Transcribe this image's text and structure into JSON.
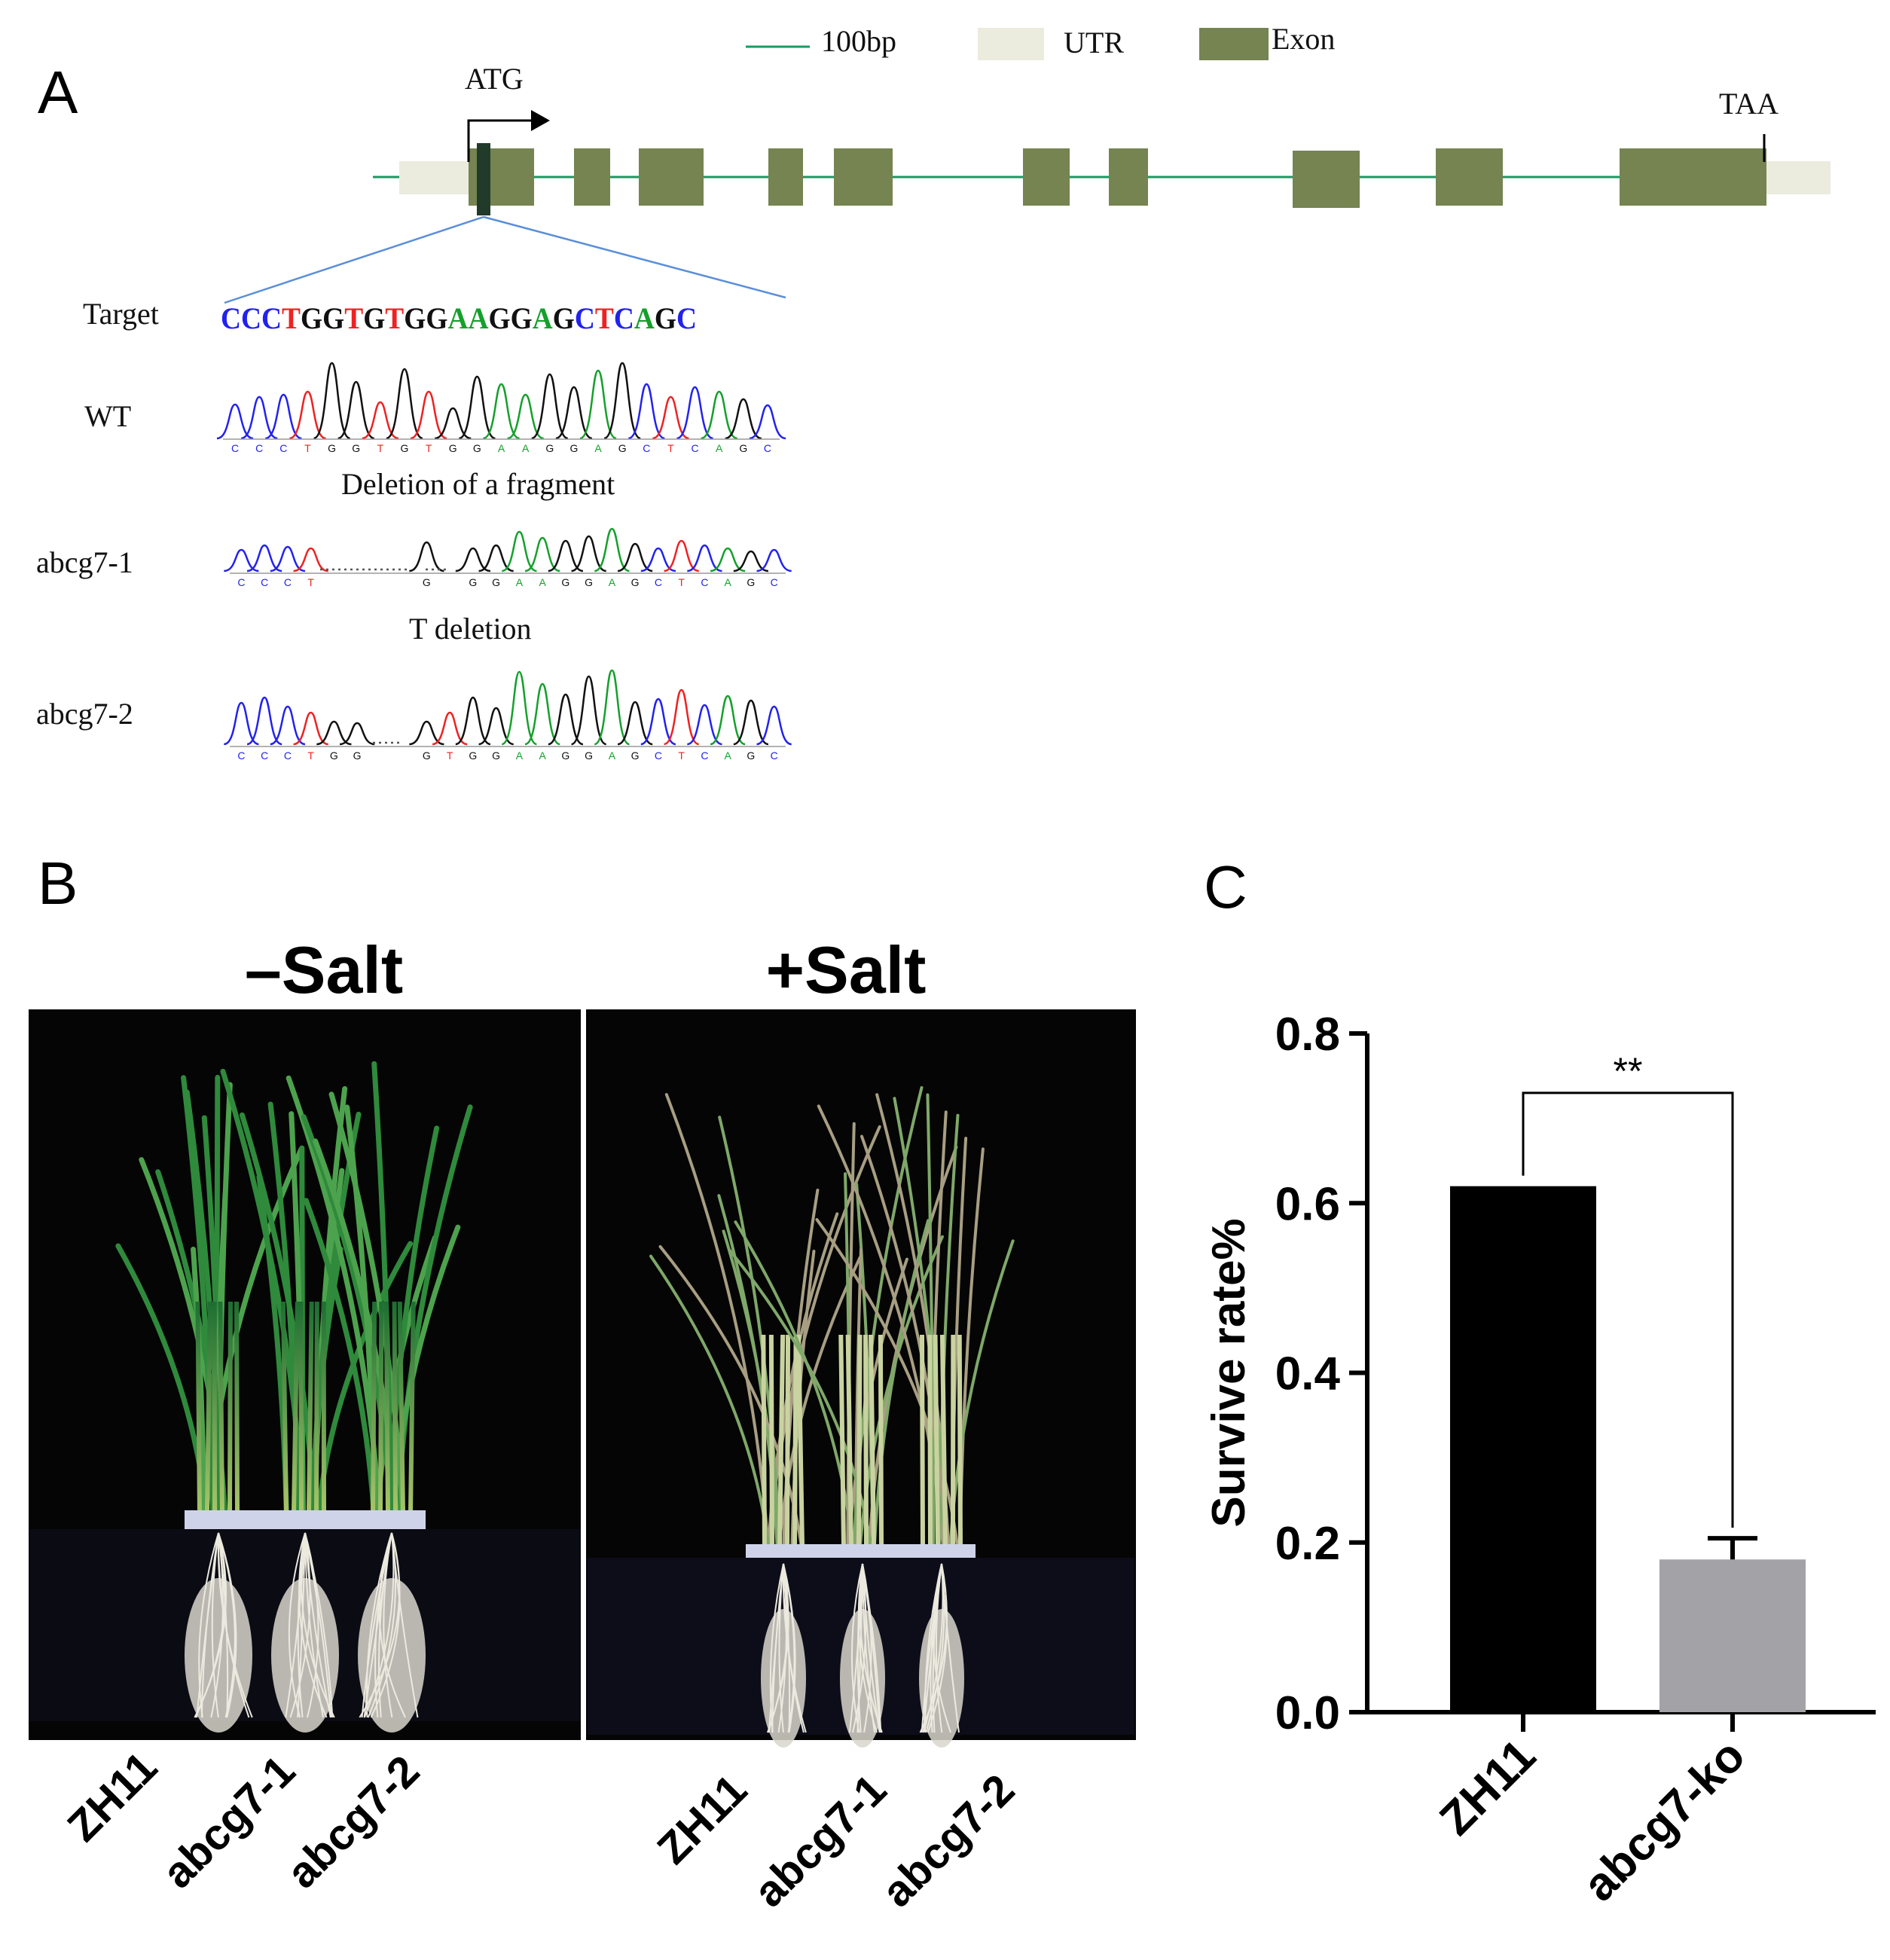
{
  "panels": {
    "a": "A",
    "b": "B",
    "c": "C"
  },
  "legend": {
    "line_label": "100bp",
    "utr_label": "UTR",
    "exon_label": "Exon",
    "line_color": "#1a9960",
    "utr_color": "#ebebde",
    "exon_color": "#758451",
    "marker_color": "#223a2a"
  },
  "gene": {
    "start_codon": "ATG",
    "stop_codon": "TAA"
  },
  "sequences": {
    "target_label": "Target",
    "target": "CCCTGGTGTGGAAGGAGCTCAGC",
    "wt_label": "WT",
    "wt_bases": "CCCTGGTGTGGAAGGAGCTCAGC",
    "deletion_caption": "Deletion of a fragment",
    "mut1_label": "abcg7-1",
    "mut1_left": "CCCT",
    "mut1_mid": "G",
    "mut1_right": "GGAAGGAGCTCAGC",
    "t_deletion_caption": "T deletion",
    "mut2_label": "abcg7-2",
    "mut2_left": "CCCTGG",
    "mut2_right": "GTGGAAGGAGCTCAGC",
    "base_colors": {
      "A": "#15a02c",
      "C": "#2222ee",
      "G": "#111111",
      "T": "#ee2222"
    }
  },
  "photo": {
    "minus_salt_title": "–Salt",
    "plus_salt_title": "+Salt",
    "minus_labels": [
      "ZH11",
      "abcg7-1",
      "abcg7-2"
    ],
    "plus_labels": [
      "ZH11",
      "abcg7-1",
      "abcg7-2"
    ]
  },
  "chart_data": {
    "type": "bar",
    "categories": [
      "ZH11",
      "abcg7-ko"
    ],
    "values": [
      0.62,
      0.18
    ],
    "error": [
      0,
      0.025
    ],
    "colors": [
      "#000000",
      "#a2a2a7"
    ],
    "ylabel": "Survive rate%",
    "xlabel": "",
    "ylim": [
      0,
      0.8
    ],
    "yticks": [
      "0.0",
      "0.2",
      "0.4",
      "0.6",
      "0.8"
    ],
    "significance": "**"
  }
}
